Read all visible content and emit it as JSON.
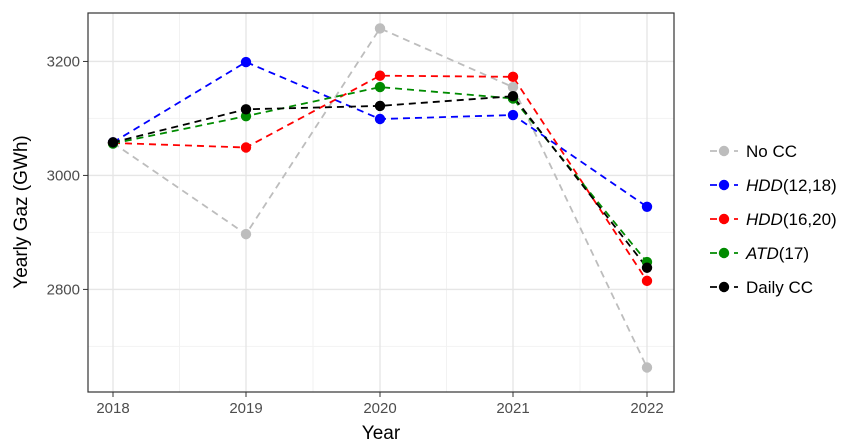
{
  "chart_data": {
    "type": "line",
    "xlabel": "Year",
    "ylabel": "Yearly Gaz (GWh)",
    "categories": [
      "2018",
      "2019",
      "2020",
      "2021",
      "2022"
    ],
    "ylim": [
      2620,
      3285
    ],
    "yticks": [
      2800,
      3000,
      3200
    ],
    "grid": true,
    "legend_position": "right",
    "series": [
      {
        "name": "No CC",
        "italic_part": "",
        "rest": "No CC",
        "color": "#bdbdbd",
        "values": [
          3057,
          2897,
          3258,
          3155,
          2663
        ]
      },
      {
        "name": "HDD(12,18)",
        "italic_part": "HDD",
        "rest": "(12,18)",
        "color": "#0000ff",
        "values": [
          3058,
          3199,
          3099,
          3106,
          2945
        ]
      },
      {
        "name": "HDD(16,20)",
        "italic_part": "HDD",
        "rest": "(16,20)",
        "color": "#ff0000",
        "values": [
          3057,
          3049,
          3175,
          3173,
          2815
        ]
      },
      {
        "name": "ATD(17)",
        "italic_part": "ATD",
        "rest": "(17)",
        "color": "#008b00",
        "values": [
          3056,
          3104,
          3155,
          3135,
          2848
        ]
      },
      {
        "name": "Daily CC",
        "italic_part": "",
        "rest": "Daily CC",
        "color": "#000000",
        "values": [
          3058,
          3116,
          3122,
          3139,
          2838
        ]
      }
    ]
  }
}
